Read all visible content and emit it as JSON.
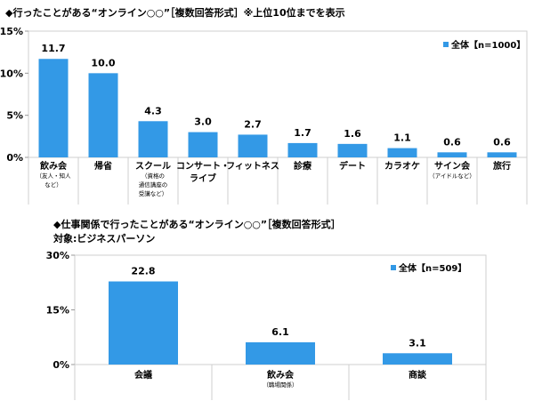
{
  "chart_data": [
    {
      "type": "bar",
      "title": "◆行ったことがある“オンライン○○”［複数回答形式］※上位10位までを表示",
      "legend": "全体【n=1000】",
      "legend_position": "top-right",
      "color": "#3399e6",
      "ylim": [
        0,
        15
      ],
      "yticks": [
        "0%",
        "5%",
        "10%",
        "15%"
      ],
      "ytick_values": [
        0,
        5,
        10,
        15
      ],
      "categories": [
        {
          "label": "飲み会",
          "sub": [
            "（友人・知人",
            "など）"
          ]
        },
        {
          "label": "帰省",
          "sub": []
        },
        {
          "label": "スクール",
          "sub": [
            "（資格の",
            "通信講座の",
            "受講など）"
          ]
        },
        {
          "label": [
            "コンサート・",
            "ライブ"
          ],
          "sub": []
        },
        {
          "label": "フィットネス",
          "sub": []
        },
        {
          "label": "診療",
          "sub": []
        },
        {
          "label": "デート",
          "sub": []
        },
        {
          "label": "カラオケ",
          "sub": []
        },
        {
          "label": "サイン会",
          "sub": [
            "（アイドルなど）"
          ]
        },
        {
          "label": "旅行",
          "sub": []
        }
      ],
      "values": [
        11.7,
        10.0,
        4.3,
        3.0,
        2.7,
        1.7,
        1.6,
        1.1,
        0.6,
        0.6
      ],
      "data_labels": [
        "11.7",
        "10.0",
        "4.3",
        "3.0",
        "2.7",
        "1.7",
        "1.6",
        "1.1",
        "0.6",
        "0.6"
      ]
    },
    {
      "type": "bar",
      "title": "◆仕事関係で行ったことがある“オンライン○○”［複数回答形式］",
      "subtitle": "対象:ビジネスパーソン",
      "legend": "全体【n=509】",
      "legend_position": "top-right",
      "color": "#3399e6",
      "ylim": [
        0,
        30
      ],
      "yticks": [
        "0%",
        "15%",
        "30%"
      ],
      "ytick_values": [
        0,
        15,
        30
      ],
      "categories": [
        {
          "label": "会議",
          "sub": []
        },
        {
          "label": "飲み会",
          "sub": [
            "（職場関係）"
          ]
        },
        {
          "label": "商談",
          "sub": []
        }
      ],
      "values": [
        22.8,
        6.1,
        3.1
      ],
      "data_labels": [
        "22.8",
        "6.1",
        "3.1"
      ]
    }
  ]
}
